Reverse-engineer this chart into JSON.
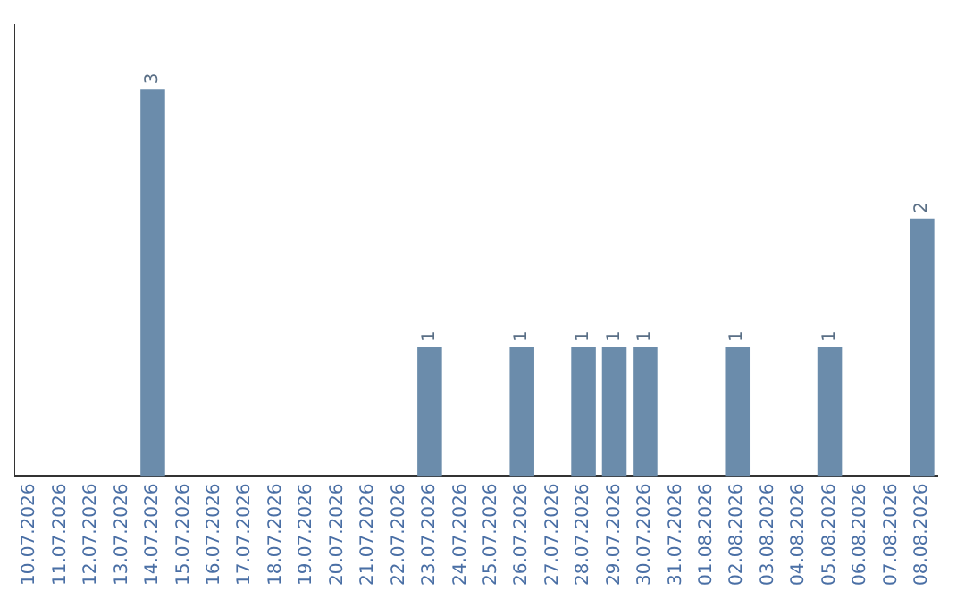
{
  "chart_data": {
    "type": "bar",
    "categories": [
      "10.07.2026",
      "11.07.2026",
      "12.07.2026",
      "13.07.2026",
      "14.07.2026",
      "15.07.2026",
      "16.07.2026",
      "17.07.2026",
      "18.07.2026",
      "19.07.2026",
      "20.07.2026",
      "21.07.2026",
      "22.07.2026",
      "23.07.2026",
      "24.07.2026",
      "25.07.2026",
      "26.07.2026",
      "27.07.2026",
      "28.07.2026",
      "29.07.2026",
      "30.07.2026",
      "31.07.2026",
      "01.08.2026",
      "02.08.2026",
      "03.08.2026",
      "04.08.2026",
      "05.08.2026",
      "06.08.2026",
      "07.08.2026",
      "08.08.2026"
    ],
    "values": [
      0,
      0,
      0,
      0,
      3,
      0,
      0,
      0,
      0,
      0,
      0,
      0,
      0,
      1,
      0,
      0,
      1,
      0,
      1,
      1,
      1,
      0,
      0,
      1,
      0,
      0,
      1,
      0,
      0,
      2
    ],
    "value_labels": [
      null,
      null,
      null,
      null,
      "3",
      null,
      null,
      null,
      null,
      null,
      null,
      null,
      null,
      "1",
      null,
      null,
      "1",
      null,
      "1",
      "1",
      "1",
      null,
      null,
      "1",
      null,
      null,
      "1",
      null,
      null,
      "2"
    ],
    "color": "#6b8cab",
    "grid": false,
    "tick_labels": "x"
  }
}
